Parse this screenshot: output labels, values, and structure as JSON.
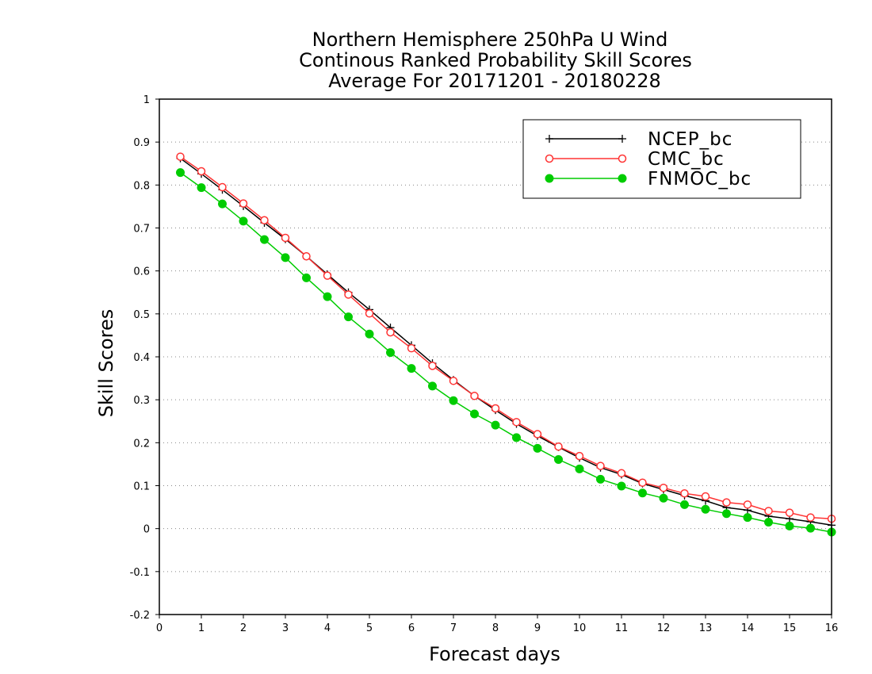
{
  "chart_data": {
    "type": "line",
    "title": [
      "Northern Hemisphere 250hPa U Wind",
      "Continous Ranked Probability Skill Scores",
      "Average For 20171201 - 20180228"
    ],
    "xlabel": "Forecast days",
    "ylabel": "Skill Scores",
    "xlim": [
      0,
      16
    ],
    "ylim": [
      -0.2,
      1
    ],
    "xticks": [
      0,
      1,
      2,
      3,
      4,
      5,
      6,
      7,
      8,
      9,
      10,
      11,
      12,
      13,
      14,
      15,
      16
    ],
    "yticks": [
      -0.2,
      -0.1,
      0,
      0.1,
      0.2,
      0.3,
      0.4,
      0.5,
      0.6,
      0.7,
      0.8,
      0.9,
      1
    ],
    "ytick_labels": [
      "-0.2",
      "-0.1",
      "0",
      "0.1",
      "0.2",
      "0.3",
      "0.4",
      "0.5",
      "0.6",
      "0.7",
      "0.8",
      "0.9",
      "1"
    ],
    "grid": "horizontal-dotted",
    "legend_position": "top-right",
    "x": [
      0.5,
      1,
      1.5,
      2,
      2.5,
      3,
      3.5,
      4,
      4.5,
      5,
      5.5,
      6,
      6.5,
      7,
      7.5,
      8,
      8.5,
      9,
      9.5,
      10,
      10.5,
      11,
      11.5,
      12,
      12.5,
      13,
      13.5,
      14,
      14.5,
      15,
      15.5,
      16
    ],
    "series": [
      {
        "name": "NCEP_bc",
        "color": "#000000",
        "marker": "plus",
        "values": [
          0.862,
          0.826,
          0.789,
          0.751,
          0.712,
          0.674,
          0.634,
          0.592,
          0.55,
          0.51,
          0.468,
          0.427,
          0.385,
          0.346,
          0.309,
          0.276,
          0.244,
          0.216,
          0.19,
          0.165,
          0.142,
          0.126,
          0.105,
          0.091,
          0.077,
          0.065,
          0.049,
          0.043,
          0.029,
          0.023,
          0.016,
          0.008
        ]
      },
      {
        "name": "CMC_bc",
        "color": "#ff3333",
        "marker": "open-circle",
        "values": [
          0.866,
          0.832,
          0.795,
          0.757,
          0.718,
          0.677,
          0.634,
          0.589,
          0.545,
          0.501,
          0.457,
          0.42,
          0.379,
          0.344,
          0.309,
          0.28,
          0.248,
          0.22,
          0.191,
          0.169,
          0.146,
          0.129,
          0.107,
          0.095,
          0.082,
          0.075,
          0.061,
          0.056,
          0.041,
          0.037,
          0.026,
          0.023
        ]
      },
      {
        "name": "FNMOC_bc",
        "color": "#00cc00",
        "marker": "filled-circle",
        "values": [
          0.829,
          0.794,
          0.756,
          0.716,
          0.673,
          0.631,
          0.584,
          0.54,
          0.493,
          0.453,
          0.41,
          0.373,
          0.332,
          0.298,
          0.267,
          0.241,
          0.212,
          0.187,
          0.161,
          0.139,
          0.115,
          0.099,
          0.083,
          0.071,
          0.056,
          0.045,
          0.035,
          0.026,
          0.015,
          0.006,
          0.001,
          -0.008
        ]
      }
    ]
  }
}
